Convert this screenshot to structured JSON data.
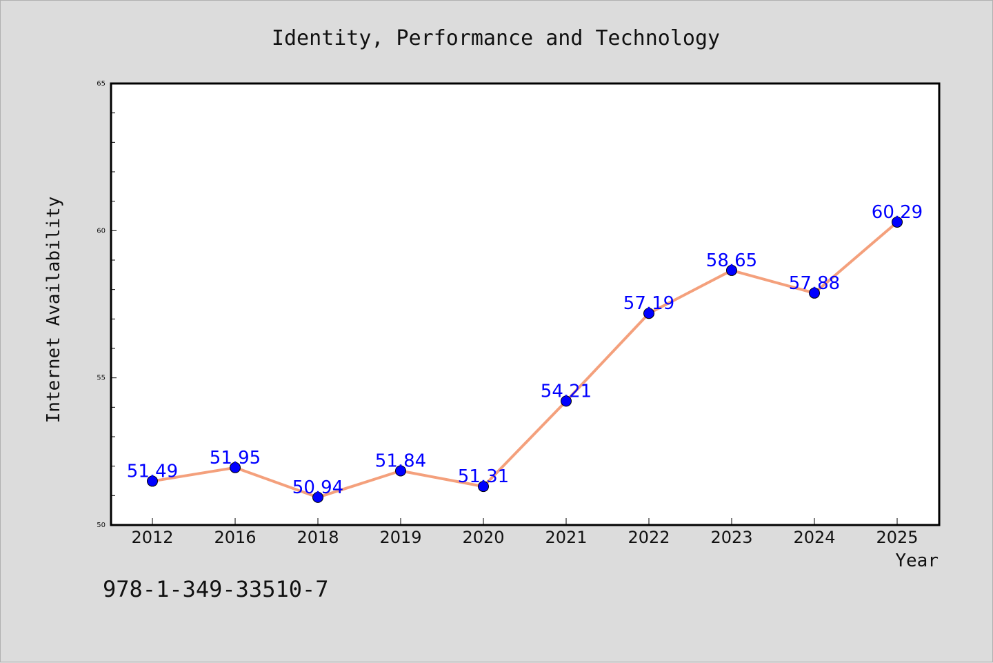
{
  "chart_data": {
    "type": "line",
    "title": "Identity, Performance and Technology",
    "xlabel": "Year",
    "ylabel": "Internet Availability",
    "categories": [
      "2012",
      "2016",
      "2018",
      "2019",
      "2020",
      "2021",
      "2022",
      "2023",
      "2024",
      "2025"
    ],
    "series": [
      {
        "values": [
          51.49,
          51.95,
          50.94,
          51.84,
          51.31,
          54.21,
          57.19,
          58.65,
          57.88,
          60.29
        ],
        "labels": [
          "51.49",
          "51.95",
          "50.94",
          "51.84",
          "51.31",
          "54.21",
          "57.19",
          "58.65",
          "57.88",
          "60.29"
        ]
      }
    ],
    "ylim": [
      50,
      65
    ],
    "yticks": [
      50,
      55,
      60,
      65
    ],
    "yticks_minor_step": 1,
    "grid": false,
    "line_color": "#f4a07c",
    "marker_color": "#0000ff",
    "label_color": "#0000ff",
    "background_color": "#dcdcdc",
    "plot_background_color": "#ffffff"
  },
  "footer": {
    "isbn": "978-1-349-33510-7"
  }
}
